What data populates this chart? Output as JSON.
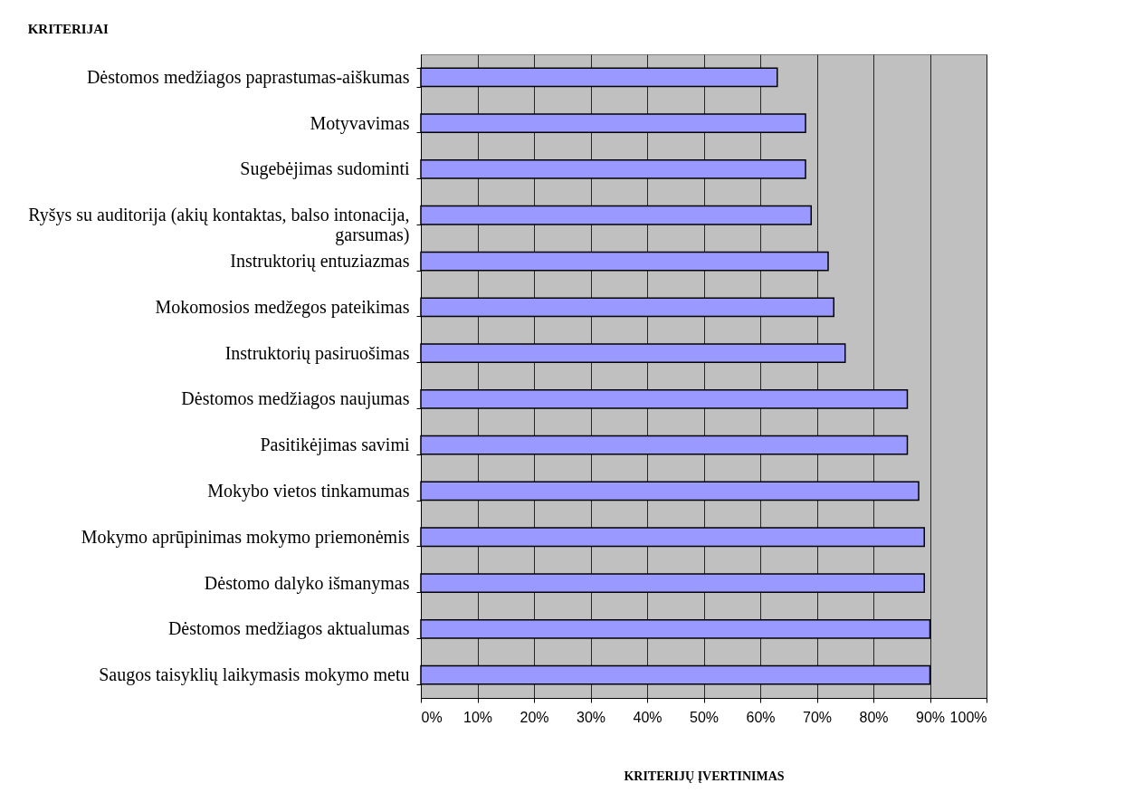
{
  "chart_data": {
    "type": "bar",
    "orientation": "horizontal",
    "title": "KRITERIJAI",
    "xlabel": "KRITERIJŲ ĮVERTINIMAS",
    "categories": [
      "Dėstomos medžiagos paprastumas-aiškumas",
      "Motyvavimas",
      "Sugebėjimas sudominti",
      "Ryšys su auditorija (akių kontaktas, balso intonacija, garsumas)",
      "Instruktorių entuziazmas",
      "Mokomosios medžegos pateikimas",
      "Instruktorių pasiruošimas",
      "Dėstomos medžiagos naujumas",
      "Pasitikėjimas savimi",
      "Mokybo vietos tinkamumas",
      "Mokymo aprūpinimas mokymo priemonėmis",
      "Dėstomo dalyko išmanymas",
      "Dėstomos medžiagos aktualumas",
      "Saugos taisyklių laikymasis mokymo metu"
    ],
    "values": [
      63,
      68,
      68,
      69,
      72,
      73,
      75,
      86,
      86,
      88,
      89,
      89,
      90,
      90
    ],
    "color": "#9999ff",
    "xlim": [
      0,
      100
    ],
    "xticks": [
      {
        "value": 0,
        "label": "0%"
      },
      {
        "value": 10,
        "label": "10%"
      },
      {
        "value": 20,
        "label": "20%"
      },
      {
        "value": 30,
        "label": "30%"
      },
      {
        "value": 40,
        "label": "40%"
      },
      {
        "value": 50,
        "label": "50%"
      },
      {
        "value": 60,
        "label": "60%"
      },
      {
        "value": 70,
        "label": "70%"
      },
      {
        "value": 80,
        "label": "80%"
      },
      {
        "value": 90,
        "label": "90%"
      },
      {
        "value": 100,
        "label": "100%"
      }
    ],
    "grid": "x"
  }
}
